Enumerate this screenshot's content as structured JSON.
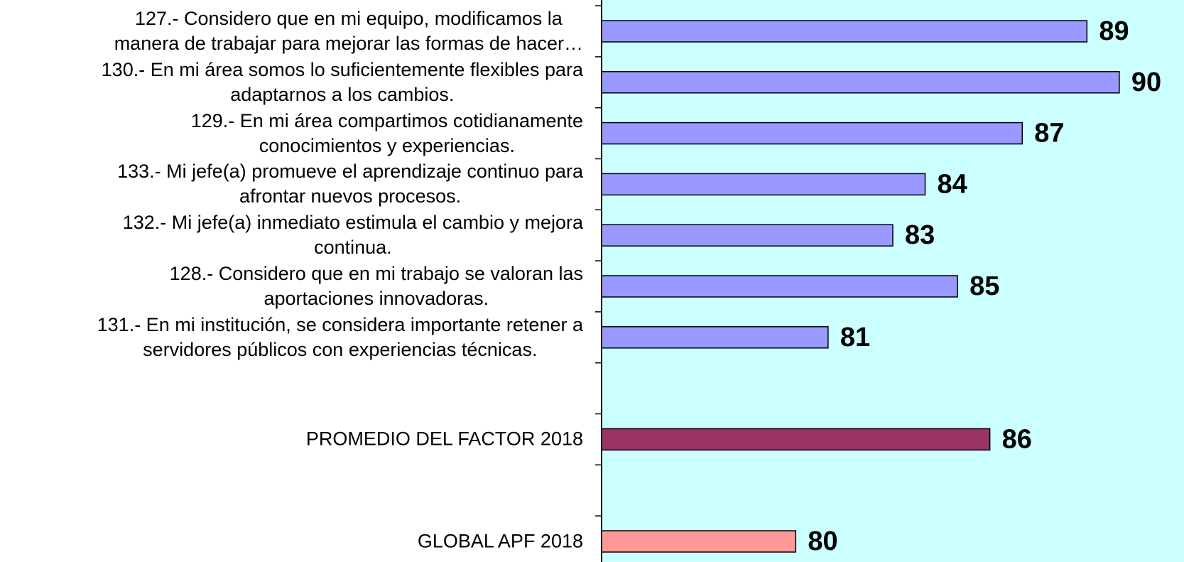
{
  "chart_data": {
    "type": "hbar",
    "categories": [
      "127.- Considero que en mi equipo, modificamos la\nmanera de trabajar para mejorar las formas de hacer…",
      "130.- En mi área somos lo suficientemente flexibles para\nadaptarnos a los cambios.",
      "129.- En mi área compartimos cotidianamente\nconocimientos y experiencias.",
      "133.- Mi jefe(a) promueve el aprendizaje continuo para\nafrontar nuevos procesos.",
      "132.- Mi jefe(a) inmediato estimula el cambio y mejora\ncontinua.",
      "128.- Considero que en mi trabajo se valoran las\naportaciones innovadoras.",
      "131.- En mi institución, se considera importante retener a\nservidores públicos con experiencias técnicas.",
      null,
      "PROMEDIO DEL FACTOR   2018",
      null,
      "GLOBAL APF   2018"
    ],
    "values": [
      89,
      90,
      87,
      84,
      83,
      85,
      81,
      null,
      86,
      null,
      80
    ],
    "colors": [
      "#9999ff",
      "#9999ff",
      "#9999ff",
      "#9999ff",
      "#9999ff",
      "#9999ff",
      "#9999ff",
      null,
      "#993366",
      null,
      "#ff9999"
    ],
    "xlim": [
      74,
      92
    ],
    "background": "#ccffff"
  }
}
